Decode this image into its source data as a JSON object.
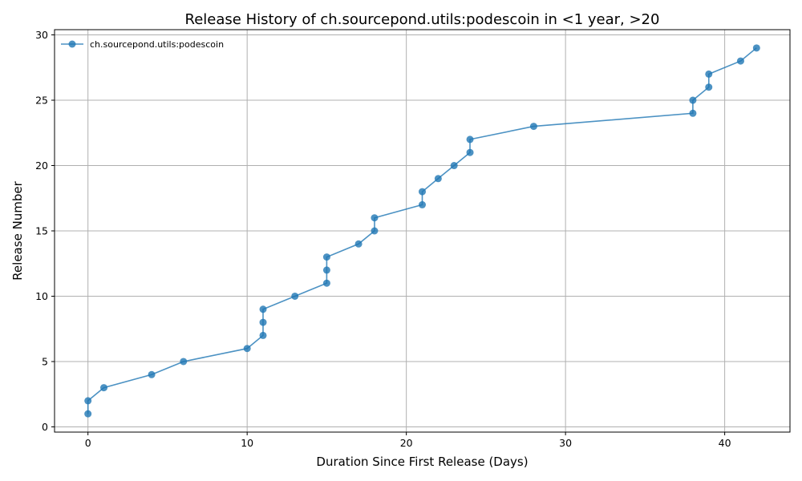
{
  "chart_data": {
    "type": "line",
    "title": "Release History of ch.sourcepond.utils:podescoin in <1 year, >20",
    "xlabel": "Duration Since First Release (Days)",
    "ylabel": "Release Number",
    "xlim": [
      -2.1,
      44.1
    ],
    "ylim": [
      -0.4,
      30.4
    ],
    "xticks": [
      0,
      10,
      20,
      30,
      40
    ],
    "yticks": [
      0,
      5,
      10,
      15,
      20,
      25,
      30
    ],
    "grid": true,
    "legend_position": "top-left",
    "series": [
      {
        "name": "ch.sourcepond.utils:podescoin",
        "color": "#1f77b4",
        "marker": "circle",
        "x": [
          0,
          0,
          1,
          4,
          6,
          10,
          11,
          11,
          11,
          13,
          15,
          15,
          15,
          17,
          18,
          18,
          21,
          21,
          22,
          23,
          24,
          24,
          28,
          38,
          38,
          39,
          39,
          41,
          42
        ],
        "y": [
          1,
          2,
          3,
          4,
          5,
          6,
          7,
          8,
          9,
          10,
          11,
          12,
          13,
          14,
          15,
          16,
          17,
          18,
          19,
          20,
          21,
          22,
          23,
          24,
          25,
          26,
          27,
          28,
          29
        ]
      }
    ]
  }
}
